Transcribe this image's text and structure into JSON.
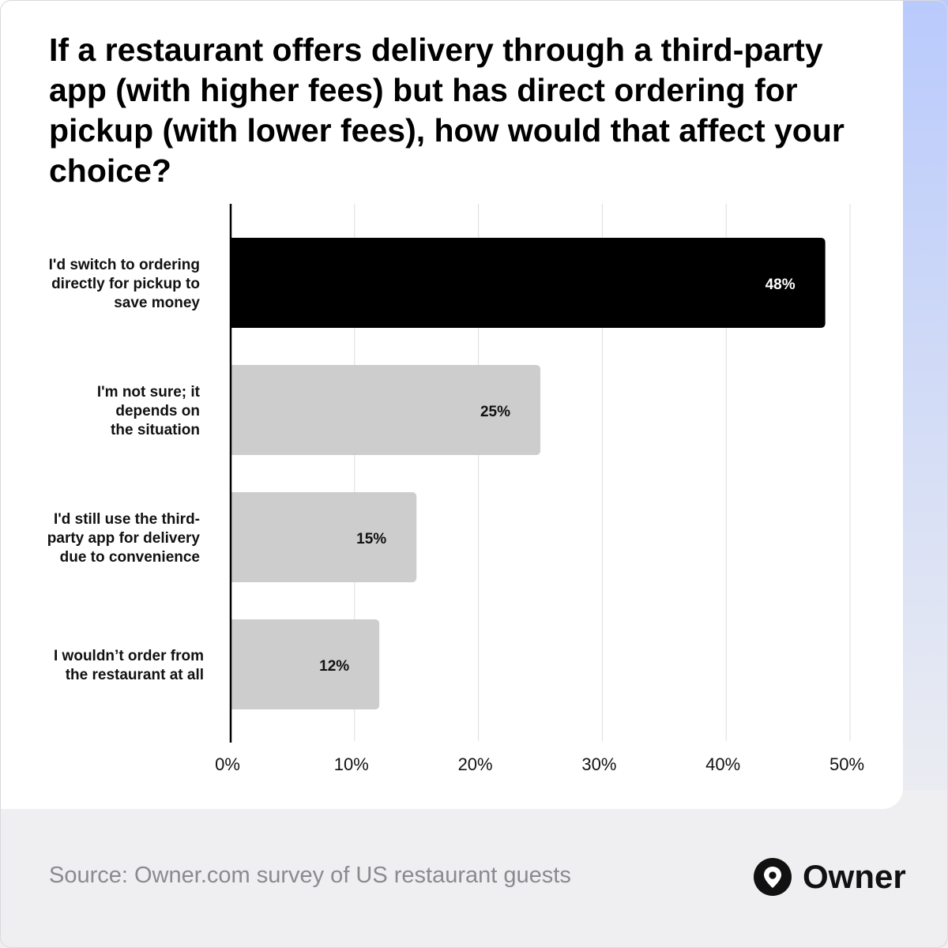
{
  "title": "If a restaurant offers delivery through a third-party app (with higher fees) but has direct ordering for pickup (with lower fees), how would that affect your choice?",
  "source": "Source: Owner.com survey of US restaurant guests",
  "brand": {
    "name": "Owner",
    "logo_icon": "location-pin-icon"
  },
  "colors": {
    "highlight_bar": "#000000",
    "bar": "#cdcdcd",
    "grid": "#dddddd",
    "axis": "#000000"
  },
  "chart_data": {
    "type": "bar",
    "orientation": "horizontal",
    "title": "If a restaurant offers delivery through a third-party app (with higher fees) but has direct ordering for pickup (with lower fees), how would that affect your choice?",
    "categories": [
      [
        "I'd switch to ordering",
        "directly for pickup to",
        "save money"
      ],
      [
        "I'm not sure; it",
        "depends on",
        "the situation"
      ],
      [
        "I'd still use the third-",
        "party app for delivery",
        "due to convenience"
      ],
      [
        "I wouldn’t order from",
        "the restaurant at all"
      ]
    ],
    "values": [
      48,
      25,
      15,
      12
    ],
    "data_labels": [
      "48%",
      "25%",
      "15%",
      "12%"
    ],
    "highlight_index": 0,
    "xlim": [
      0,
      50
    ],
    "ticks": [
      0,
      10,
      20,
      30,
      40,
      50
    ],
    "tick_labels": [
      "0%",
      "10%",
      "20%",
      "30%",
      "40%",
      "50%"
    ],
    "grid": true,
    "legend": "none"
  }
}
